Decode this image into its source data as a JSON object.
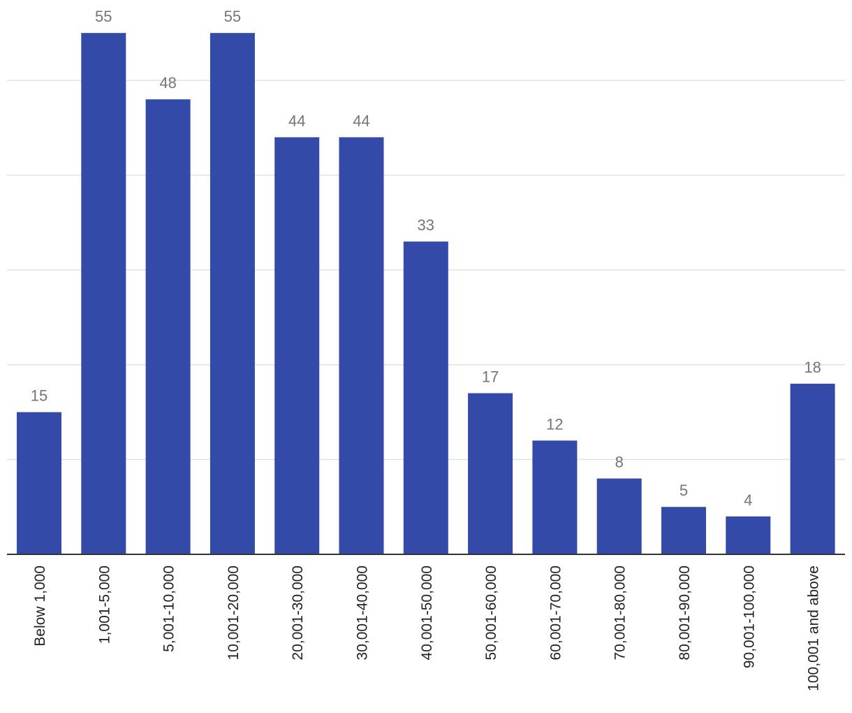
{
  "colors": {
    "bar": "#334aa8",
    "grid": "#e2e2e2",
    "axis": "#333333",
    "data_label": "#757575",
    "tick_label": "#222222",
    "background": "#ffffff"
  },
  "chart_data": {
    "type": "bar",
    "title": "",
    "xlabel": "",
    "ylabel": "",
    "categories": [
      "Below 1,000",
      "1,001-5,000",
      "5,001-10,000",
      "10,001-20,000",
      "20,001-30,000",
      "30,001-40,000",
      "40,001-50,000",
      "50,001-60,000",
      "60,001-70,000",
      "70,001-80,000",
      "80,001-90,000",
      "90,001-100,000",
      "100,001 and above"
    ],
    "values": [
      15,
      55,
      48,
      55,
      44,
      44,
      33,
      17,
      12,
      8,
      5,
      4,
      18
    ],
    "ylim": [
      0,
      60
    ],
    "grid": true,
    "gridlines": [
      10,
      20,
      30,
      40,
      50
    ],
    "legend": "none",
    "data_labels": true
  }
}
